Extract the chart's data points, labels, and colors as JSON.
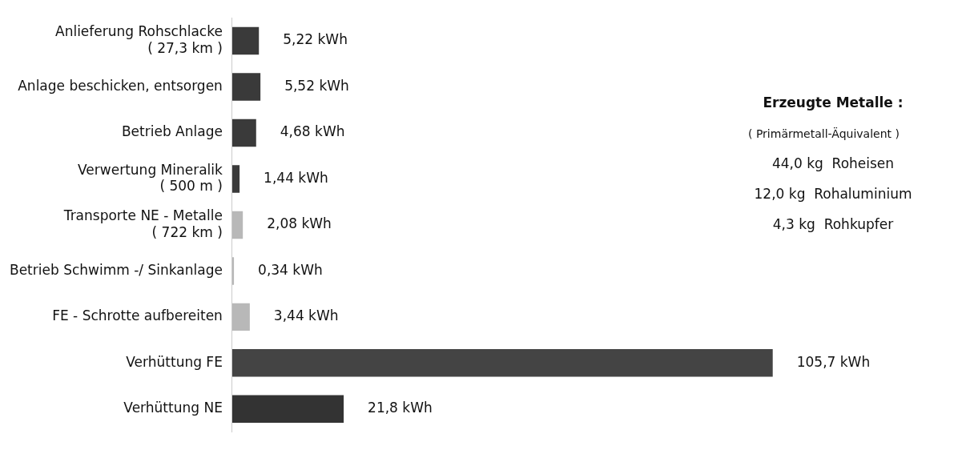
{
  "chart_data": {
    "type": "bar",
    "orientation": "horizontal",
    "categories": [
      "Anlieferung Rohschlacke\n( 27,3 km )",
      "Anlage beschicken, entsorgen",
      "Betrieb Anlage",
      "Verwertung Mineralik\n( 500 m )",
      "Transporte NE - Metalle\n( 722 km )",
      "Betrieb Schwimm -/ Sinkanlage",
      "FE - Schrotte aufbereiten",
      "Verhüttung FE",
      "Verhüttung NE"
    ],
    "values": [
      5.22,
      5.52,
      4.68,
      1.44,
      2.08,
      0.34,
      3.44,
      105.7,
      21.8
    ],
    "value_labels": [
      "5,22 kWh",
      "5,52 kWh",
      "4,68 kWh",
      "1,44 kWh",
      "2,08 kWh",
      "0,34 kWh",
      "3,44 kWh",
      "105,7 kWh",
      "21,8 kWh"
    ],
    "colors": [
      "#3a3a3a",
      "#3a3a3a",
      "#3a3a3a",
      "#3a3a3a",
      "#b8b8b8",
      "#b8b8b8",
      "#b8b8b8",
      "#444444",
      "#333333"
    ],
    "annotations": [
      "Erzeugte Metalle :",
      "( Primärmetall-Äquivalent )",
      "44,0 kg  Roheisen",
      "12,0 kg  Rohaluminium",
      "4,3 kg  Rohkupfer"
    ],
    "tick_labels": "y",
    "grid": false,
    "legend": false
  }
}
